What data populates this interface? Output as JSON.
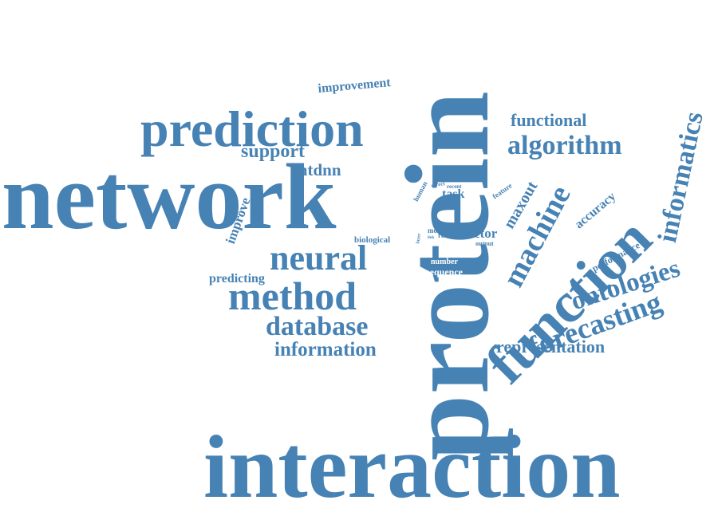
{
  "colors": {
    "word": "#4682b4",
    "background": "#ffffff"
  },
  "words": {
    "protein": "protein",
    "interaction": "interaction",
    "network": "network",
    "prediction": "prediction",
    "function": "function",
    "method": "method",
    "neural": "neural",
    "machine": "machine",
    "algorithm": "algorithm",
    "informatics": "informatics",
    "ontologies": "ontologies",
    "forecasting": "forecasting",
    "database": "database",
    "information": "information",
    "representation": "representation",
    "support": "support",
    "mtdnn": "mtdnn",
    "functional": "functional",
    "improvement": "improvement",
    "improve": "improve",
    "predicting": "predicting",
    "maxout": "maxout",
    "accuracy": "accuracy",
    "performance": "performance",
    "vector": "vector",
    "task": "task",
    "biological": "biological",
    "sequence": "sequence",
    "number": "number",
    "human": "human",
    "direct": "direct",
    "recent": "recent",
    "feature": "feature",
    "more": "more",
    "term": "term",
    "result": "result",
    "output": "output",
    "layer": "layer",
    "link": "link"
  }
}
